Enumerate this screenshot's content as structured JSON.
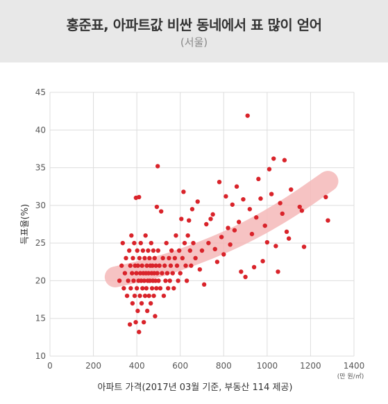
{
  "header": {
    "title": "홍준표,  아파트값 비싼 동네에서 표 많이 얻어",
    "subtitle": "(서울)"
  },
  "chart_data": {
    "type": "scatter",
    "xlabel": "아파트 가격(2017년 03월 기준, 부동산 114 제공)",
    "ylabel": "득표율(%)",
    "x_unit": "(만 원/㎡)",
    "xlim": [
      0,
      1400
    ],
    "ylim": [
      10,
      45
    ],
    "xticks": [
      0,
      200,
      400,
      600,
      800,
      1000,
      1200,
      1400
    ],
    "yticks": [
      10,
      15,
      20,
      25,
      30,
      35,
      40,
      45
    ],
    "grid": true,
    "point_color": "#d9232a",
    "trend_color": "#f4b8b8",
    "trend": [
      [
        300,
        20.5
      ],
      [
        500,
        21.8
      ],
      [
        700,
        23.8
      ],
      [
        900,
        26.3
      ],
      [
        1100,
        29.6
      ],
      [
        1280,
        33.2
      ]
    ],
    "series": [
      {
        "points": [
          [
            320,
            20
          ],
          [
            330,
            22
          ],
          [
            335,
            25
          ],
          [
            340,
            19
          ],
          [
            345,
            21
          ],
          [
            350,
            23
          ],
          [
            355,
            18
          ],
          [
            360,
            20
          ],
          [
            365,
            24
          ],
          [
            368,
            14.2
          ],
          [
            370,
            22
          ],
          [
            372,
            19
          ],
          [
            375,
            26
          ],
          [
            378,
            21
          ],
          [
            380,
            17
          ],
          [
            382,
            23
          ],
          [
            385,
            20
          ],
          [
            388,
            25
          ],
          [
            390,
            18
          ],
          [
            392,
            22
          ],
          [
            395,
            14.5
          ],
          [
            396,
            31
          ],
          [
            398,
            21
          ],
          [
            400,
            19
          ],
          [
            402,
            24
          ],
          [
            404,
            16
          ],
          [
            405,
            22
          ],
          [
            408,
            20
          ],
          [
            410,
            13.2
          ],
          [
            410,
            31.1
          ],
          [
            412,
            23
          ],
          [
            414,
            18
          ],
          [
            416,
            21
          ],
          [
            418,
            25
          ],
          [
            420,
            20
          ],
          [
            422,
            17
          ],
          [
            424,
            22
          ],
          [
            426,
            19
          ],
          [
            428,
            24
          ],
          [
            430,
            21
          ],
          [
            432,
            14.5
          ],
          [
            434,
            20
          ],
          [
            436,
            23
          ],
          [
            438,
            18
          ],
          [
            440,
            26
          ],
          [
            442,
            21
          ],
          [
            444,
            19
          ],
          [
            446,
            22
          ],
          [
            448,
            16
          ],
          [
            450,
            20
          ],
          [
            452,
            24
          ],
          [
            454,
            21
          ],
          [
            456,
            18
          ],
          [
            458,
            23
          ],
          [
            460,
            20
          ],
          [
            462,
            22
          ],
          [
            464,
            17
          ],
          [
            466,
            25
          ],
          [
            468,
            21
          ],
          [
            470,
            19
          ],
          [
            472,
            22
          ],
          [
            474,
            20
          ],
          [
            476,
            24
          ],
          [
            478,
            18
          ],
          [
            480,
            21
          ],
          [
            482,
            23
          ],
          [
            484,
            15.3
          ],
          [
            486,
            20
          ],
          [
            488,
            22
          ],
          [
            490,
            19
          ],
          [
            492,
            29.8
          ],
          [
            494,
            21
          ],
          [
            496,
            35.2
          ],
          [
            498,
            24
          ],
          [
            500,
            20
          ],
          [
            504,
            22
          ],
          [
            508,
            19
          ],
          [
            512,
            29.2
          ],
          [
            516,
            21
          ],
          [
            520,
            23
          ],
          [
            524,
            18
          ],
          [
            528,
            22
          ],
          [
            532,
            20
          ],
          [
            536,
            25
          ],
          [
            540,
            21
          ],
          [
            544,
            19
          ],
          [
            548,
            23
          ],
          [
            552,
            20
          ],
          [
            556,
            22
          ],
          [
            560,
            24
          ],
          [
            565,
            21
          ],
          [
            570,
            19
          ],
          [
            575,
            23
          ],
          [
            580,
            26
          ],
          [
            585,
            22
          ],
          [
            590,
            20
          ],
          [
            595,
            24
          ],
          [
            600,
            21
          ],
          [
            605,
            28.2
          ],
          [
            610,
            23
          ],
          [
            615,
            31.8
          ],
          [
            620,
            25
          ],
          [
            625,
            22
          ],
          [
            630,
            20
          ],
          [
            635,
            26
          ],
          [
            640,
            28
          ],
          [
            645,
            24
          ],
          [
            650,
            22
          ],
          [
            655,
            29.5
          ],
          [
            660,
            25
          ],
          [
            670,
            23
          ],
          [
            680,
            30.5
          ],
          [
            690,
            21.5
          ],
          [
            700,
            24
          ],
          [
            710,
            19.5
          ],
          [
            720,
            27.5
          ],
          [
            730,
            25
          ],
          [
            740,
            28.2
          ],
          [
            750,
            28.8
          ],
          [
            760,
            24.2
          ],
          [
            770,
            22.5
          ],
          [
            780,
            33.1
          ],
          [
            790,
            25.8
          ],
          [
            800,
            23.5
          ],
          [
            810,
            31.2
          ],
          [
            820,
            27
          ],
          [
            830,
            24.8
          ],
          [
            840,
            30.1
          ],
          [
            850,
            26.7
          ],
          [
            860,
            32.5
          ],
          [
            870,
            27.8
          ],
          [
            880,
            21.2
          ],
          [
            890,
            30.8
          ],
          [
            900,
            20.5
          ],
          [
            910,
            41.9
          ],
          [
            920,
            29.5
          ],
          [
            930,
            26.2
          ],
          [
            940,
            21.8
          ],
          [
            950,
            28.4
          ],
          [
            960,
            33.5
          ],
          [
            970,
            30.9
          ],
          [
            980,
            22.6
          ],
          [
            990,
            27.3
          ],
          [
            1000,
            25.1
          ],
          [
            1010,
            34.8
          ],
          [
            1020,
            31.5
          ],
          [
            1030,
            36.2
          ],
          [
            1040,
            24.6
          ],
          [
            1050,
            21.2
          ],
          [
            1060,
            30.3
          ],
          [
            1070,
            28.9
          ],
          [
            1080,
            36
          ],
          [
            1090,
            26.5
          ],
          [
            1100,
            25.6
          ],
          [
            1110,
            32.1
          ],
          [
            1150,
            29.8
          ],
          [
            1160,
            29.3
          ],
          [
            1170,
            24.5
          ],
          [
            1270,
            31.1
          ],
          [
            1280,
            28
          ]
        ]
      }
    ]
  }
}
